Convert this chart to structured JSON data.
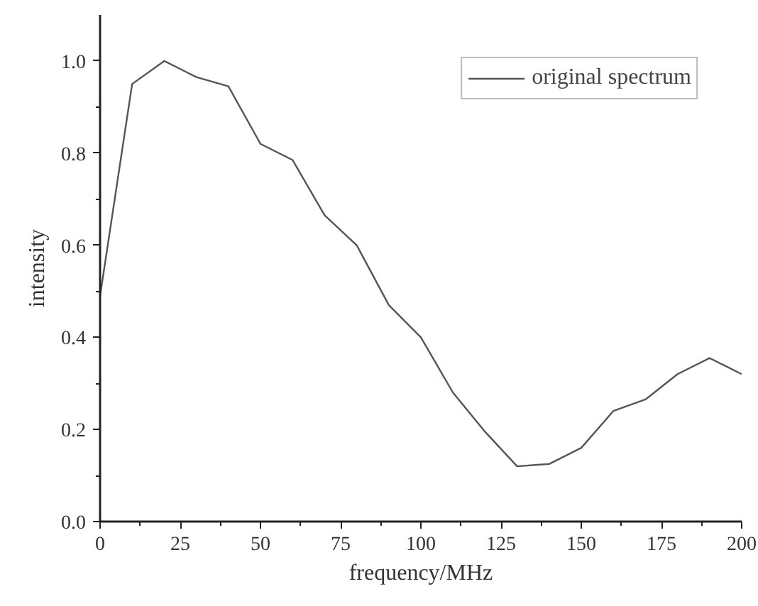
{
  "chart_data": {
    "type": "line",
    "xlabel": "frequency/MHz",
    "ylabel": "intensity",
    "x": [
      0,
      10,
      20,
      30,
      40,
      50,
      60,
      70,
      80,
      90,
      100,
      110,
      120,
      130,
      140,
      150,
      160,
      170,
      180,
      190,
      200
    ],
    "series": [
      {
        "name": "original spectrum",
        "color": "#555555",
        "values": [
          0.49,
          0.95,
          1.0,
          0.965,
          0.945,
          0.82,
          0.785,
          0.665,
          0.6,
          0.47,
          0.4,
          0.28,
          0.195,
          0.12,
          0.125,
          0.16,
          0.24,
          0.265,
          0.32,
          0.355,
          0.32
        ]
      }
    ],
    "xlim": [
      0,
      200
    ],
    "ylim": [
      0,
      1.1
    ],
    "xticks": [
      0,
      25,
      50,
      75,
      100,
      125,
      150,
      175,
      200
    ],
    "yticks": [
      {
        "value": 0,
        "label": "0.0"
      },
      {
        "value": 0.2,
        "label": "0.2"
      },
      {
        "value": 0.4,
        "label": "0.4"
      },
      {
        "value": 0.6,
        "label": "0.6"
      },
      {
        "value": 0.8,
        "label": "0.8"
      },
      {
        "value": 1.0,
        "label": "1.0"
      }
    ],
    "grid": false,
    "legend": "top right",
    "marker": "none",
    "line_style": "solid"
  }
}
